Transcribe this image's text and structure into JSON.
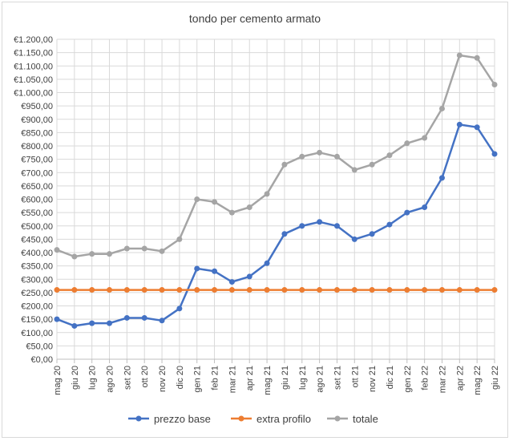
{
  "chart_data": {
    "type": "line",
    "title": "tondo per cemento armato",
    "xlabel": "",
    "ylabel": "",
    "categories": [
      "mag 20",
      "giu 20",
      "lug 20",
      "ago 20",
      "set 20",
      "ott 20",
      "nov 20",
      "dic 20",
      "gen 21",
      "feb 21",
      "mar 21",
      "apr 21",
      "mag 21",
      "giu 21",
      "lug 21",
      "ago 21",
      "set 21",
      "ott 21",
      "nov 21",
      "dic 21",
      "gen 22",
      "feb 22",
      "mar 22",
      "apr 22",
      "mag 22",
      "giu 22"
    ],
    "ylim": [
      0,
      1200
    ],
    "ytick_step": 50,
    "ytick_labels": [
      "€0,00",
      "€50,00",
      "€100,00",
      "€150,00",
      "€200,00",
      "€250,00",
      "€300,00",
      "€350,00",
      "€400,00",
      "€450,00",
      "€500,00",
      "€550,00",
      "€600,00",
      "€650,00",
      "€700,00",
      "€750,00",
      "€800,00",
      "€850,00",
      "€900,00",
      "€950,00",
      "€1.000,00",
      "€1.050,00",
      "€1.100,00",
      "€1.150,00",
      "€1.200,00"
    ],
    "grid": true,
    "legend_position": "bottom",
    "series": [
      {
        "name": "prezzo base",
        "color": "#4472c4",
        "values": [
          150,
          125,
          135,
          135,
          155,
          155,
          145,
          190,
          340,
          330,
          290,
          310,
          360,
          470,
          500,
          515,
          500,
          450,
          470,
          505,
          550,
          570,
          680,
          880,
          870,
          770
        ]
      },
      {
        "name": "extra profilo",
        "color": "#ed7d31",
        "values": [
          260,
          260,
          260,
          260,
          260,
          260,
          260,
          260,
          260,
          260,
          260,
          260,
          260,
          260,
          260,
          260,
          260,
          260,
          260,
          260,
          260,
          260,
          260,
          260,
          260,
          260
        ]
      },
      {
        "name": "totale",
        "color": "#a5a5a5",
        "values": [
          410,
          385,
          395,
          395,
          415,
          415,
          405,
          450,
          600,
          590,
          550,
          570,
          620,
          730,
          760,
          775,
          760,
          710,
          730,
          765,
          810,
          830,
          940,
          1140,
          1130,
          1030
        ]
      }
    ]
  }
}
